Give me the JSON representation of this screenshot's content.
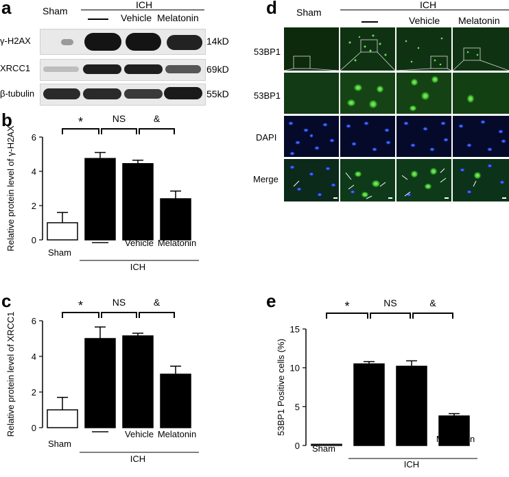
{
  "panels": {
    "a": {
      "letter": "a",
      "sham_label": "Sham",
      "ich_label": "ICH",
      "dash_label": "—",
      "vehicle_label": "Vehicle",
      "melatonin_label": "Melatonin",
      "rows": [
        {
          "name": "γ-H2AX",
          "kd": "14kD"
        },
        {
          "name": "XRCC1",
          "kd": "69kD"
        },
        {
          "name": "β-tubulin",
          "kd": "55kD"
        }
      ]
    },
    "d": {
      "letter": "d",
      "sham_label": "Sham",
      "ich_label": "ICH",
      "dash_label": "—",
      "vehicle_label": "Vehicle",
      "melatonin_label": "Melatonin",
      "row_labels": [
        "53BP1",
        "53BP1",
        "DAPI",
        "Merge"
      ]
    }
  },
  "chart_data": [
    {
      "panel": "b",
      "type": "bar",
      "categories": [
        "Sham",
        "—",
        "Vehicle",
        "Melatonin"
      ],
      "group_label": "ICH",
      "values": [
        1.0,
        4.75,
        4.45,
        2.4
      ],
      "errors": [
        0.6,
        0.35,
        0.2,
        0.45
      ],
      "colors": [
        "#ffffff",
        "#000000",
        "#000000",
        "#000000"
      ],
      "ylabel": "Relative protein level of  γ-H2AX",
      "ylim": [
        0,
        6
      ],
      "yticks": [
        "0",
        "2",
        "4",
        "6"
      ],
      "significance": [
        "*",
        "NS",
        "&"
      ]
    },
    {
      "panel": "c",
      "type": "bar",
      "categories": [
        "Sham",
        "—",
        "Vehicle",
        "Melatonin"
      ],
      "group_label": "ICH",
      "values": [
        1.0,
        5.0,
        5.15,
        3.0
      ],
      "errors": [
        0.7,
        0.65,
        0.15,
        0.45
      ],
      "colors": [
        "#ffffff",
        "#000000",
        "#000000",
        "#000000"
      ],
      "ylabel": "Relative protein level of XRCC1",
      "ylim": [
        0,
        6
      ],
      "yticks": [
        "0",
        "2",
        "4",
        "6"
      ],
      "significance": [
        "*",
        "NS",
        "&"
      ]
    },
    {
      "panel": "e",
      "type": "bar",
      "categories": [
        "Sham",
        "—",
        "Vehicle",
        "Melatonin"
      ],
      "group_label": "ICH",
      "values": [
        0.15,
        10.5,
        10.2,
        3.8
      ],
      "errors": [
        0.0,
        0.3,
        0.7,
        0.3
      ],
      "colors": [
        "#ffffff",
        "#000000",
        "#000000",
        "#000000"
      ],
      "ylabel": "53BP1 Positive cells (%)",
      "ylim": [
        0,
        15
      ],
      "yticks": [
        "0",
        "5",
        "10",
        "15"
      ],
      "significance": [
        "*",
        "NS",
        "&"
      ]
    }
  ]
}
